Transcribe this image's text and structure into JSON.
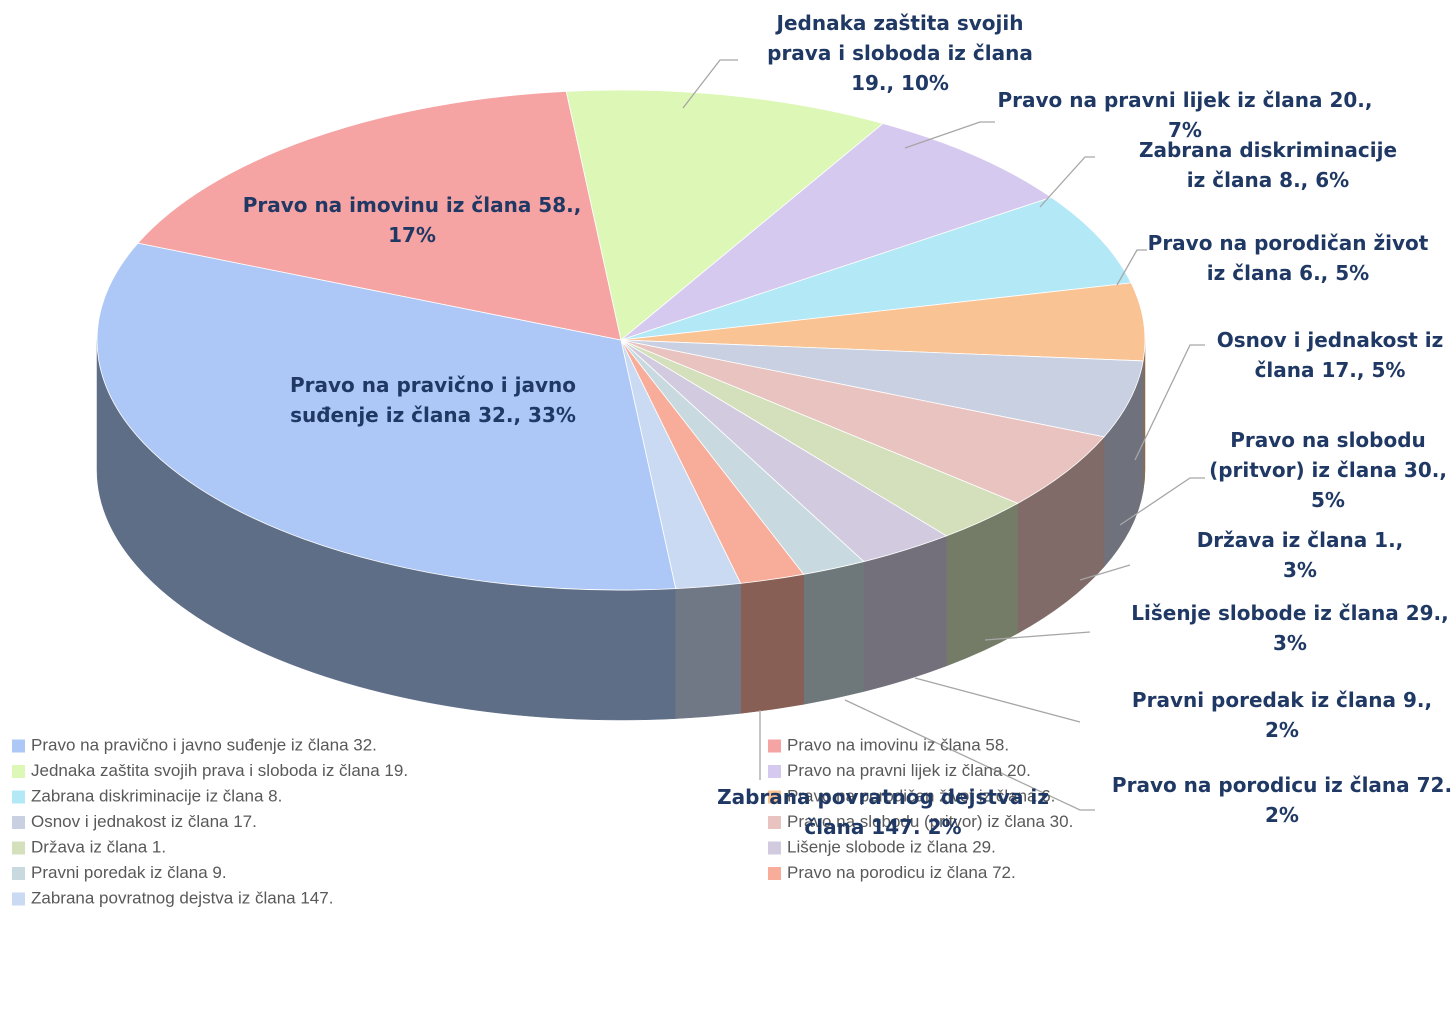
{
  "chart_data": {
    "type": "pie",
    "three_d": true,
    "legend": "bottom",
    "categories": [
      "Pravo na pravično i javno suđenje iz člana 32.",
      "Pravo na imovinu iz člana 58.",
      "Jednaka zaštita svojih prava i sloboda iz člana 19.",
      "Pravo na pravni lijek iz člana 20.",
      "Zabrana diskriminacije iz člana 8.",
      "Pravo na porodičan život iz člana 6.",
      "Osnov i jednakost iz člana 17.",
      "Pravo na slobodu (pritvor) iz člana 30.",
      "Država iz člana 1.",
      "Lišenje slobode iz člana 29.",
      "Pravni poredak iz člana 9.",
      "Pravo na porodicu iz člana 72.",
      "Zabrana povratnog dejstva iz člana 147."
    ],
    "values": [
      33,
      17,
      10,
      7,
      6,
      5,
      5,
      5,
      3,
      3,
      2,
      2,
      2
    ],
    "value_labels": [
      "Pravo na pravično i javno suđenje iz člana 32., 33%",
      "Pravo na imovinu iz člana 58., 17%",
      "Jednaka zaštita svojih prava i sloboda iz člana 19., 10%",
      "Pravo na pravni lijek iz člana 20., 7%",
      "Zabrana diskriminacije iz člana 8., 6%",
      "Pravo na porodičan život iz člana 6., 5%",
      "Osnov i jednakost iz člana 17., 5%",
      "Pravo na slobodu (pritvor) iz člana 30., 5%",
      "Država iz člana 1., 3%",
      "Lišenje slobode iz člana 29., 3%",
      "Pravni poredak iz člana 9., 2%",
      "Pravo na porodicu iz člana 72. 2%",
      "Zabrana povratnog dejstva iz člana 147. 2%"
    ],
    "colors": [
      "#adc8f6",
      "#f6a3a3",
      "#dcf7b6",
      "#d6c9f0",
      "#b3e8f7",
      "#f9c393",
      "#c9d0e2",
      "#e8c3bf",
      "#d3e0bb",
      "#d2cbdf",
      "#c8dae0",
      "#f7ad9a",
      "#cbdaf3"
    ]
  }
}
